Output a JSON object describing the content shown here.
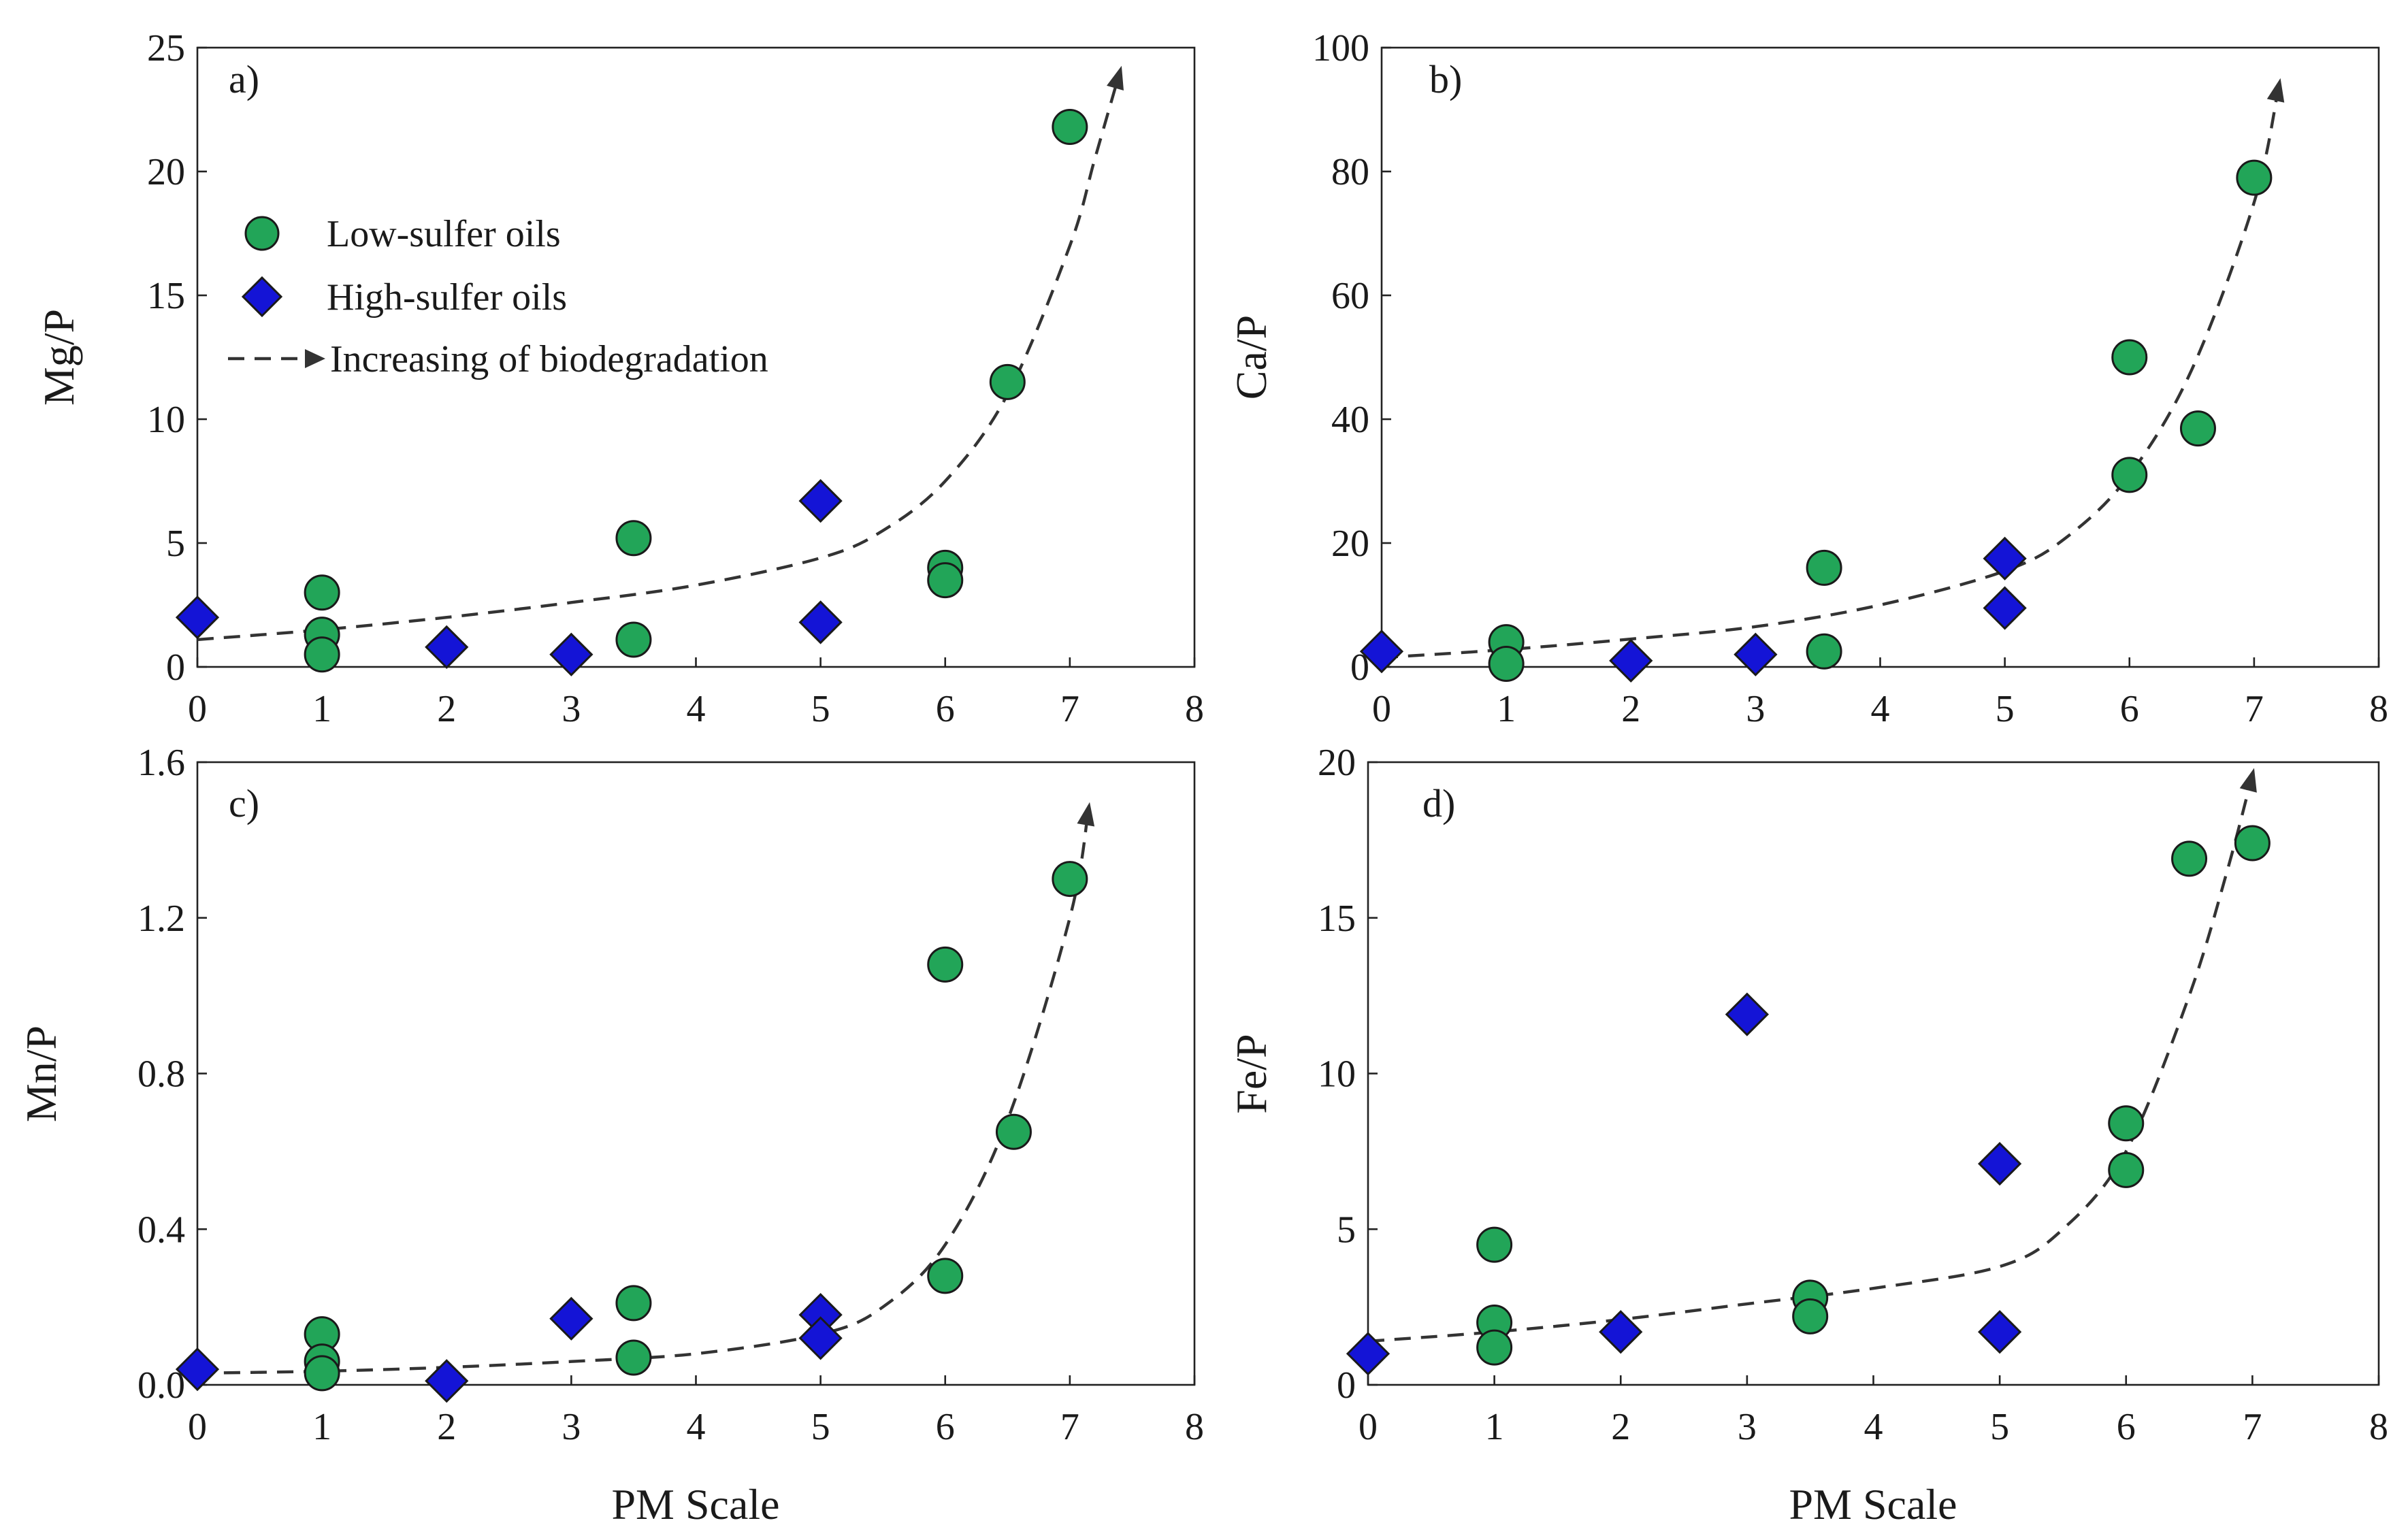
{
  "figure": {
    "legend": {
      "low_sulfer": "Low-sulfer oils",
      "high_sulfer": "High-sulfer oils",
      "trend": "Increasing of biodegradation"
    },
    "colors": {
      "low_sulfer": "#22a558",
      "high_sulfer": "#1414d6",
      "marker_edge": "#1a1a1a",
      "trend_line": "#333333"
    }
  },
  "chart_data": [
    {
      "panel": "a)",
      "type": "scatter",
      "xlabel": "",
      "ylabel": "Mg/P",
      "xlim": [
        0,
        8
      ],
      "ylim": [
        0,
        25
      ],
      "x_ticks": [
        0,
        1,
        2,
        3,
        4,
        5,
        6,
        7,
        8
      ],
      "y_ticks": [
        0,
        5,
        10,
        15,
        20,
        25
      ],
      "legend_position": "upper-left",
      "series": [
        {
          "name": "Low-sulfer oils",
          "marker": "circle",
          "x": [
            1,
            1,
            1,
            3.5,
            3.5,
            6,
            6,
            6.5,
            7
          ],
          "y": [
            3,
            1.3,
            0.5,
            5.2,
            1.1,
            4,
            3.5,
            11.5,
            21.8
          ]
        },
        {
          "name": "High-sulfer oils",
          "marker": "diamond",
          "x": [
            0,
            2,
            3,
            5,
            5
          ],
          "y": [
            2,
            0.8,
            0.5,
            6.7,
            1.8
          ]
        }
      ],
      "trend": {
        "x": [
          0,
          1,
          2,
          3,
          4,
          5,
          5.5,
          6,
          6.5,
          7,
          7.2,
          7.4
        ],
        "y": [
          1.1,
          1.5,
          2,
          2.6,
          3.3,
          4.4,
          5.5,
          7.5,
          11,
          17,
          20.5,
          24
        ]
      }
    },
    {
      "panel": "b)",
      "type": "scatter",
      "xlabel": "",
      "ylabel": "Ca/P",
      "xlim": [
        0,
        8
      ],
      "ylim": [
        0,
        100
      ],
      "x_ticks": [
        0,
        1,
        2,
        3,
        4,
        5,
        6,
        7,
        8
      ],
      "y_ticks": [
        0,
        20,
        40,
        60,
        80,
        100
      ],
      "series": [
        {
          "name": "Low-sulfer oils",
          "marker": "circle",
          "x": [
            1,
            1,
            3.55,
            3.55,
            6,
            6,
            6.55,
            7
          ],
          "y": [
            4,
            0.5,
            16,
            2.5,
            50,
            31,
            38.5,
            79
          ]
        },
        {
          "name": "High-sulfer oils",
          "marker": "diamond",
          "x": [
            0,
            2,
            3,
            5,
            5
          ],
          "y": [
            2.5,
            1,
            2,
            17.5,
            9.5
          ]
        }
      ],
      "trend": {
        "x": [
          0,
          1,
          2,
          3,
          4,
          5,
          5.5,
          6,
          6.5,
          7,
          7.2
        ],
        "y": [
          1.5,
          2.8,
          4.5,
          6.5,
          10,
          15.5,
          21,
          31,
          48,
          75,
          94
        ]
      }
    },
    {
      "panel": "c)",
      "type": "scatter",
      "xlabel": "PM Scale",
      "ylabel": "Mn/P",
      "xlim": [
        0,
        8
      ],
      "ylim": [
        0,
        1.6
      ],
      "x_ticks": [
        0,
        1,
        2,
        3,
        4,
        5,
        6,
        7,
        8
      ],
      "y_ticks": [
        "0.0",
        "0.4",
        "0.8",
        "1.2",
        "1.6"
      ],
      "series": [
        {
          "name": "Low-sulfer oils",
          "marker": "circle",
          "x": [
            1,
            1,
            1,
            3.5,
            3.5,
            6,
            6,
            6.55,
            7
          ],
          "y": [
            0.13,
            0.06,
            0.03,
            0.21,
            0.07,
            1.08,
            0.28,
            0.65,
            1.3
          ]
        },
        {
          "name": "High-sulfer oils",
          "marker": "diamond",
          "x": [
            0,
            2,
            3,
            5,
            5
          ],
          "y": [
            0.04,
            0.01,
            0.17,
            0.18,
            0.12
          ]
        }
      ],
      "trend": {
        "x": [
          0,
          1,
          2,
          3,
          4,
          5,
          5.5,
          6,
          6.5,
          7,
          7.15
        ],
        "y": [
          0.03,
          0.035,
          0.045,
          0.06,
          0.08,
          0.13,
          0.2,
          0.36,
          0.68,
          1.2,
          1.48
        ]
      }
    },
    {
      "panel": "d)",
      "type": "scatter",
      "xlabel": "PM Scale",
      "ylabel": "Fe/P",
      "xlim": [
        0,
        8
      ],
      "ylim": [
        0,
        20
      ],
      "x_ticks": [
        0,
        1,
        2,
        3,
        4,
        5,
        6,
        7,
        8
      ],
      "y_ticks": [
        0,
        5,
        10,
        15,
        20
      ],
      "series": [
        {
          "name": "Low-sulfer oils",
          "marker": "circle",
          "x": [
            1,
            1,
            1,
            3.5,
            3.5,
            6,
            6,
            6.5,
            7
          ],
          "y": [
            4.5,
            2,
            1.2,
            2.8,
            2.2,
            8.4,
            6.9,
            16.9,
            17.4
          ]
        },
        {
          "name": "High-sulfer oils",
          "marker": "diamond",
          "x": [
            0,
            2,
            3,
            5,
            5
          ],
          "y": [
            1,
            1.7,
            11.9,
            7.1,
            1.7
          ]
        }
      ],
      "trend": {
        "x": [
          0,
          1,
          2,
          3,
          4,
          5,
          5.5,
          6,
          6.5,
          6.8,
          7
        ],
        "y": [
          1.4,
          1.7,
          2.1,
          2.6,
          3.1,
          3.8,
          5,
          7.5,
          12.5,
          16.5,
          19.6
        ]
      }
    }
  ]
}
